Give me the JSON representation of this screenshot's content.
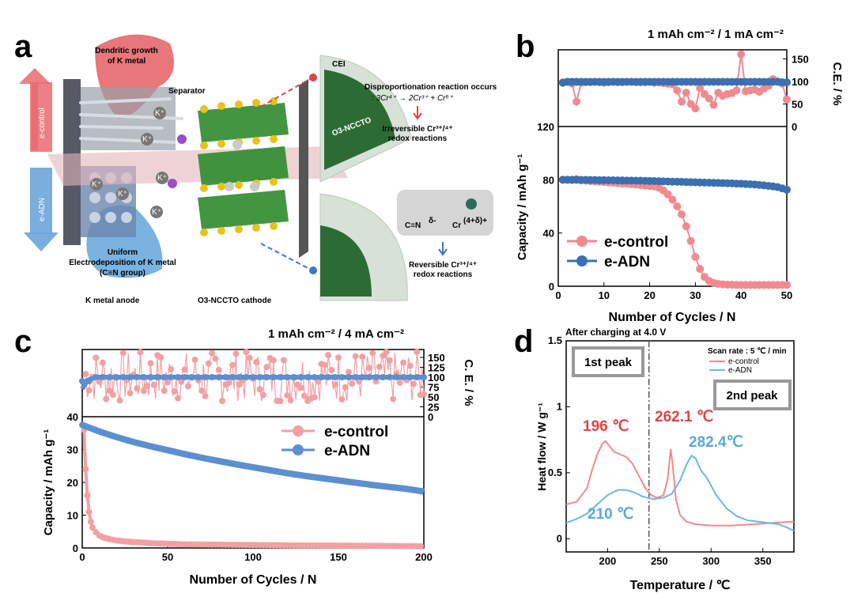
{
  "panel_letters": [
    "a",
    "b",
    "c",
    "d"
  ],
  "schematic": {
    "top_arrow_label": "e-control",
    "bottom_arrow_label": "e-ADN",
    "dendritic_label_1": "Dendritic growth",
    "dendritic_label_2": "of K metal",
    "uniform_label_1": "Uniform",
    "uniform_label_2": "Electrodeposition of K metal",
    "uniform_label_3": "(C≡N group)",
    "separator_label": "Separator",
    "anode_label": "K metal anode",
    "cathode_label": "O3-NCCTO cathode",
    "cei_label": "CEI",
    "o3_label": "O3-NCCTO",
    "dispro_title": "Disproportionation reaction occurs",
    "dispro_eq": ": 3Cr⁴⁺ → 2Cr³⁺ + Cr⁶⁺",
    "irrev_1": "Irreversible Cr³⁺/⁴⁺",
    "irrev_2": "redox reactions",
    "cn_label": "C≡N",
    "cn_sup": "δ-",
    "cr_label": "Cr",
    "cr_sup": "(4+δ)+",
    "rev_1": "Reversible Cr³⁺/⁴⁺",
    "rev_2": "redox reactions",
    "k_ion": "K⁺",
    "colors": {
      "red": "#e96a6f",
      "blue": "#5b9bd5",
      "green": "#2e8b2e",
      "gold": "#e8c21c"
    }
  },
  "chart_data": [
    {
      "panel": "b",
      "type": "scatter",
      "title": "1 mAh cm⁻² / 1 mA cm⁻²",
      "xlabel": "Number of Cycles / N",
      "ylabel": "Capacity / mAh g⁻¹",
      "ylabel_top": "C.E. / %",
      "xlim": [
        0,
        50
      ],
      "ylim": [
        0,
        120
      ],
      "ylim_top": [
        0,
        170
      ],
      "xticks": [
        0,
        10,
        20,
        30,
        40,
        50
      ],
      "yticks": [
        0,
        40,
        80,
        120
      ],
      "yticks_top": [
        0,
        50,
        100,
        150
      ],
      "legend_position": "bottom-left",
      "series": [
        {
          "name": "e-control",
          "color": "#f08a8f",
          "x": [
            1,
            2,
            3,
            4,
            5,
            6,
            7,
            8,
            9,
            10,
            11,
            12,
            13,
            14,
            15,
            16,
            17,
            18,
            19,
            20,
            21,
            22,
            23,
            24,
            25,
            26,
            27,
            28,
            29,
            30,
            31,
            32,
            33,
            34,
            35,
            36,
            37,
            38,
            39,
            40,
            41,
            42,
            43,
            44,
            45,
            46,
            47,
            48,
            49,
            50
          ],
          "capacity": [
            80,
            80,
            79.8,
            80.5,
            79.5,
            79.3,
            79,
            78.8,
            78.6,
            78.3,
            78,
            77.8,
            77.5,
            77.2,
            77,
            76.7,
            76.4,
            76,
            75.7,
            75.3,
            75,
            74,
            72,
            69,
            65,
            60,
            54,
            45,
            34,
            22,
            13,
            7,
            4,
            2.5,
            1.8,
            1.4,
            1.2,
            1.1,
            1,
            1,
            1,
            1,
            1,
            1,
            1,
            1,
            1,
            1,
            1,
            1
          ],
          "ce": [
            98,
            99,
            95,
            55,
            97,
            98,
            98,
            99,
            98,
            97,
            98,
            99,
            98,
            98,
            99,
            99,
            98,
            98,
            98,
            99,
            97,
            98,
            96,
            95,
            93,
            80,
            55,
            75,
            50,
            40,
            85,
            72,
            62,
            48,
            75,
            68,
            72,
            74,
            80,
            160,
            78,
            80,
            82,
            77,
            84,
            90,
            105,
            100,
            95,
            60
          ]
        },
        {
          "name": "e-ADN",
          "color": "#3b6fb0",
          "x": [
            1,
            2,
            3,
            4,
            5,
            6,
            7,
            8,
            9,
            10,
            11,
            12,
            13,
            14,
            15,
            16,
            17,
            18,
            19,
            20,
            21,
            22,
            23,
            24,
            25,
            26,
            27,
            28,
            29,
            30,
            31,
            32,
            33,
            34,
            35,
            36,
            37,
            38,
            39,
            40,
            41,
            42,
            43,
            44,
            45,
            46,
            47,
            48,
            49,
            50
          ],
          "capacity": [
            80,
            80,
            80,
            80,
            79.9,
            79.9,
            79.8,
            79.8,
            79.7,
            79.7,
            79.6,
            79.6,
            79.5,
            79.5,
            79.4,
            79.4,
            79.3,
            79.3,
            79.2,
            79.1,
            79,
            78.9,
            78.8,
            78.7,
            78.6,
            78.5,
            78.4,
            78.3,
            78.2,
            78.1,
            78,
            77.9,
            77.8,
            77.7,
            77.6,
            77.5,
            77.4,
            77.3,
            77.1,
            77,
            76.8,
            76.6,
            76.4,
            76.1,
            75.8,
            75.4,
            75,
            74.5,
            73.5,
            72.5
          ],
          "ce": [
            97,
            99,
            99,
            99,
            99,
            99,
            99,
            99,
            99,
            99,
            99,
            99,
            99,
            99,
            99,
            99,
            99,
            99,
            99,
            99,
            99,
            99,
            99,
            99,
            99,
            99,
            99,
            99,
            99,
            99,
            99,
            99,
            99,
            99,
            99,
            99,
            99,
            99,
            99,
            99,
            99,
            99,
            99,
            99,
            99,
            99,
            99,
            99,
            98,
            98
          ]
        }
      ]
    },
    {
      "panel": "c",
      "type": "scatter",
      "title": "1 mAh cm⁻² / 4 mA cm⁻²",
      "xlabel": "Number of Cycles / N",
      "ylabel": "Capacity / mAh g⁻¹",
      "ylabel_top": "C. E. / %",
      "xlim": [
        0,
        200
      ],
      "ylim": [
        0,
        40
      ],
      "ylim_top": [
        0,
        170
      ],
      "xticks": [
        0,
        50,
        100,
        150,
        200
      ],
      "yticks": [
        0,
        10,
        20,
        30,
        40
      ],
      "yticks_top": [
        0,
        25,
        50,
        75,
        100,
        125,
        150
      ],
      "legend_position": "top-right",
      "series": [
        {
          "name": "e-control",
          "color": "#f2a0a3",
          "capacity_pts": [
            [
              1,
              36
            ],
            [
              2,
              24
            ],
            [
              3,
              16
            ],
            [
              4,
              11
            ],
            [
              5,
              8
            ],
            [
              6,
              6.2
            ],
            [
              8,
              4.8
            ],
            [
              10,
              3.8
            ],
            [
              13,
              3.1
            ],
            [
              16,
              2.7
            ],
            [
              20,
              2.3
            ],
            [
              25,
              2
            ],
            [
              30,
              1.8
            ],
            [
              40,
              1.5
            ],
            [
              50,
              1.3
            ],
            [
              60,
              1.1
            ],
            [
              80,
              1
            ],
            [
              100,
              0.9
            ],
            [
              120,
              0.8
            ],
            [
              150,
              0.7
            ],
            [
              180,
              0.6
            ],
            [
              200,
              0.5
            ]
          ],
          "ce_range": [
            40,
            165
          ]
        },
        {
          "name": "e-ADN",
          "color": "#5b8fd0",
          "capacity_pts": [
            [
              0,
              37.5
            ],
            [
              10,
              35.5
            ],
            [
              20,
              33.8
            ],
            [
              30,
              32.3
            ],
            [
              40,
              31
            ],
            [
              50,
              29.8
            ],
            [
              60,
              28.6
            ],
            [
              70,
              27.5
            ],
            [
              80,
              26.5
            ],
            [
              90,
              25.5
            ],
            [
              100,
              24.6
            ],
            [
              110,
              23.7
            ],
            [
              120,
              22.8
            ],
            [
              130,
              22
            ],
            [
              140,
              21.3
            ],
            [
              150,
              20.6
            ],
            [
              160,
              19.9
            ],
            [
              170,
              19.2
            ],
            [
              180,
              18.6
            ],
            [
              190,
              18
            ],
            [
              200,
              17.2
            ]
          ],
          "ce": [
            70,
            100
          ]
        }
      ]
    },
    {
      "panel": "d",
      "type": "line",
      "title": "After charging at 4.0 V",
      "xlabel": "Temperature / ℃",
      "ylabel": "Heat flow / W g⁻¹",
      "xlim": [
        160,
        380
      ],
      "ylim": [
        -0.1,
        1.5
      ],
      "xticks": [
        200,
        250,
        300,
        350
      ],
      "yticks": [
        0.0,
        0.5,
        1.0,
        1.5
      ],
      "legend_title": "Scan rate : 5 ℃ / min",
      "legend_position": "top-right",
      "divider_x": 240,
      "box_labels": [
        "1st peak",
        "2nd peak"
      ],
      "annotations": [
        {
          "text": "196 ℃",
          "color": "#e04444"
        },
        {
          "text": "262.1 ℃",
          "color": "#e04444"
        },
        {
          "text": "282.4℃",
          "color": "#5aa7d8"
        },
        {
          "text": "210 ℃",
          "color": "#5aa7d8"
        }
      ],
      "series": [
        {
          "name": "e-control",
          "color": "#f08a8f",
          "points": [
            [
              160,
              0.26
            ],
            [
              170,
              0.28
            ],
            [
              180,
              0.38
            ],
            [
              185,
              0.52
            ],
            [
              190,
              0.64
            ],
            [
              195,
              0.72
            ],
            [
              198,
              0.74
            ],
            [
              202,
              0.7
            ],
            [
              206,
              0.66
            ],
            [
              212,
              0.64
            ],
            [
              218,
              0.62
            ],
            [
              224,
              0.57
            ],
            [
              230,
              0.48
            ],
            [
              236,
              0.39
            ],
            [
              242,
              0.33
            ],
            [
              248,
              0.31
            ],
            [
              254,
              0.33
            ],
            [
              258,
              0.45
            ],
            [
              261,
              0.68
            ],
            [
              263,
              0.55
            ],
            [
              266,
              0.3
            ],
            [
              270,
              0.18
            ],
            [
              276,
              0.13
            ],
            [
              285,
              0.11
            ],
            [
              300,
              0.1
            ],
            [
              320,
              0.1
            ],
            [
              340,
              0.11
            ],
            [
              360,
              0.12
            ],
            [
              380,
              0.13
            ]
          ]
        },
        {
          "name": "e-ADN",
          "color": "#6fb7e0",
          "points": [
            [
              160,
              0.12
            ],
            [
              170,
              0.15
            ],
            [
              180,
              0.19
            ],
            [
              190,
              0.26
            ],
            [
              200,
              0.33
            ],
            [
              210,
              0.37
            ],
            [
              218,
              0.37
            ],
            [
              226,
              0.35
            ],
            [
              234,
              0.32
            ],
            [
              244,
              0.3
            ],
            [
              254,
              0.31
            ],
            [
              262,
              0.34
            ],
            [
              270,
              0.44
            ],
            [
              276,
              0.56
            ],
            [
              281,
              0.63
            ],
            [
              285,
              0.61
            ],
            [
              290,
              0.52
            ],
            [
              296,
              0.46
            ],
            [
              305,
              0.33
            ],
            [
              315,
              0.23
            ],
            [
              325,
              0.17
            ],
            [
              335,
              0.14
            ],
            [
              345,
              0.13
            ],
            [
              355,
              0.12
            ],
            [
              365,
              0.11
            ],
            [
              372,
              0.09
            ],
            [
              380,
              0.06
            ]
          ]
        }
      ]
    }
  ]
}
